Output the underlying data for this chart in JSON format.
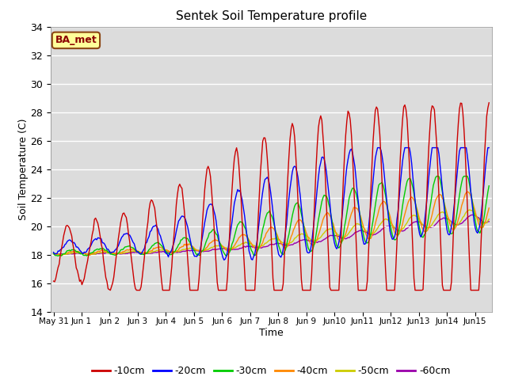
{
  "title": "Sentek Soil Temperature profile",
  "xlabel": "Time",
  "ylabel": "Soil Temperature (C)",
  "ylim": [
    14,
    34
  ],
  "yticks": [
    14,
    16,
    18,
    20,
    22,
    24,
    26,
    28,
    30,
    32,
    34
  ],
  "background_color": "#dcdcdc",
  "legend_label": "BA_met",
  "legend_box_color": "#ffff99",
  "legend_box_edge": "#8B4513",
  "series_colors": {
    "-10cm": "#cc0000",
    "-20cm": "#0000ff",
    "-30cm": "#00cc00",
    "-40cm": "#ff8800",
    "-50cm": "#cccc00",
    "-60cm": "#9900aa"
  },
  "depths": [
    "-10cm",
    "-20cm",
    "-30cm",
    "-40cm",
    "-50cm",
    "-60cm"
  ]
}
